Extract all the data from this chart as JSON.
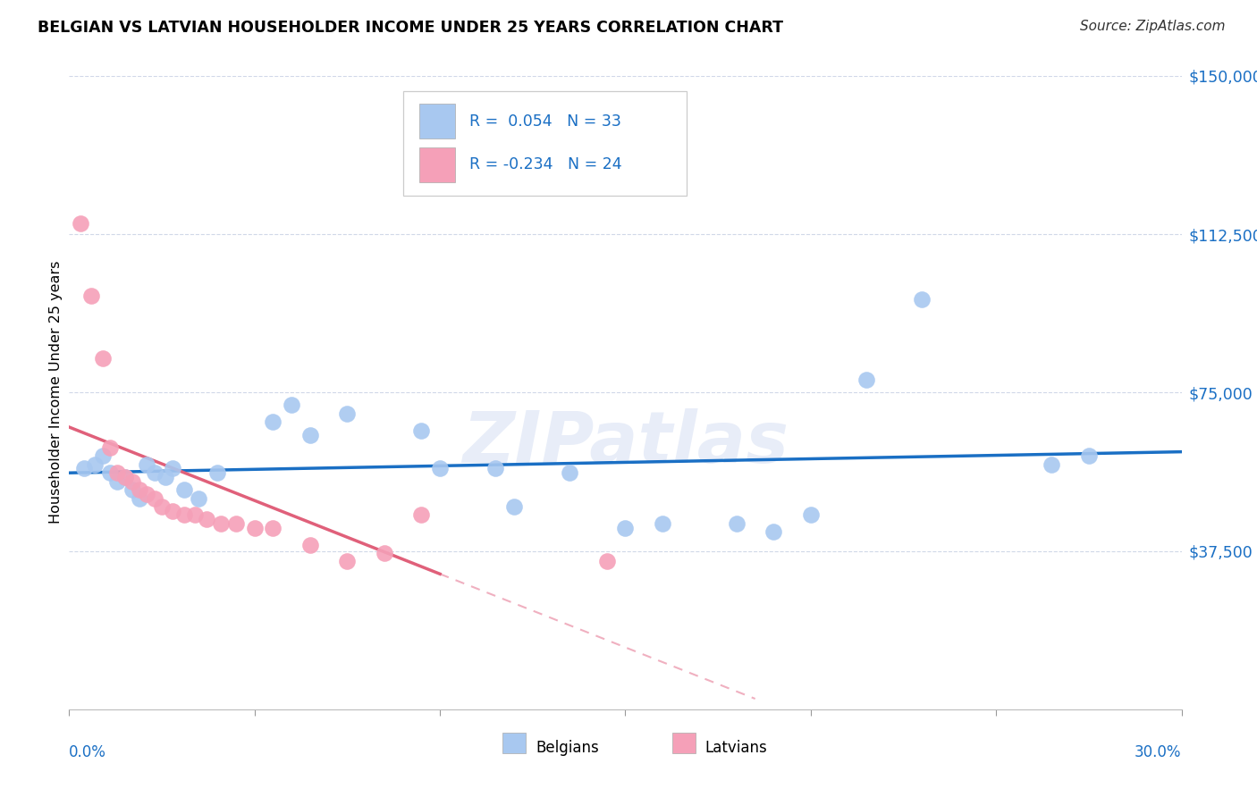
{
  "title": "BELGIAN VS LATVIAN HOUSEHOLDER INCOME UNDER 25 YEARS CORRELATION CHART",
  "source": "Source: ZipAtlas.com",
  "ylabel": "Householder Income Under 25 years",
  "xmin": 0.0,
  "xmax": 30.0,
  "ymin": 0,
  "ymax": 150000,
  "yticks": [
    37500,
    75000,
    112500,
    150000
  ],
  "ytick_labels": [
    "$37,500",
    "$75,000",
    "$112,500",
    "$150,000"
  ],
  "belgian_R": 0.054,
  "belgian_N": 33,
  "latvian_R": -0.234,
  "latvian_N": 24,
  "belgian_color": "#a8c8f0",
  "latvian_color": "#f5a0b8",
  "belgian_line_color": "#1a6fc4",
  "latvian_line_color": "#e0607a",
  "latvian_dash_color": "#f0b0c0",
  "grid_color": "#d0d8e8",
  "watermark": "ZIPatlas",
  "belgians_x": [
    0.4,
    0.7,
    0.9,
    1.1,
    1.3,
    1.5,
    1.7,
    1.9,
    2.1,
    2.3,
    2.6,
    2.8,
    3.1,
    3.5,
    4.0,
    5.5,
    6.0,
    6.5,
    7.5,
    9.5,
    10.0,
    11.5,
    12.0,
    13.5,
    15.0,
    16.0,
    18.0,
    19.0,
    20.0,
    21.5,
    23.0,
    26.5,
    27.5
  ],
  "belgians_y": [
    57000,
    58000,
    60000,
    56000,
    54000,
    55000,
    52000,
    50000,
    58000,
    56000,
    55000,
    57000,
    52000,
    50000,
    56000,
    68000,
    72000,
    65000,
    70000,
    66000,
    57000,
    57000,
    48000,
    56000,
    43000,
    44000,
    44000,
    42000,
    46000,
    78000,
    97000,
    58000,
    60000
  ],
  "latvians_x": [
    0.3,
    0.6,
    0.9,
    1.1,
    1.3,
    1.5,
    1.7,
    1.9,
    2.1,
    2.3,
    2.5,
    2.8,
    3.1,
    3.4,
    3.7,
    4.1,
    4.5,
    5.0,
    5.5,
    6.5,
    7.5,
    8.5,
    9.5,
    14.5
  ],
  "latvians_y": [
    115000,
    98000,
    83000,
    62000,
    56000,
    55000,
    54000,
    52000,
    51000,
    50000,
    48000,
    47000,
    46000,
    46000,
    45000,
    44000,
    44000,
    43000,
    43000,
    39000,
    35000,
    37000,
    46000,
    35000
  ],
  "latvian_solid_end": 10.0,
  "latvian_dash_end": 18.5
}
